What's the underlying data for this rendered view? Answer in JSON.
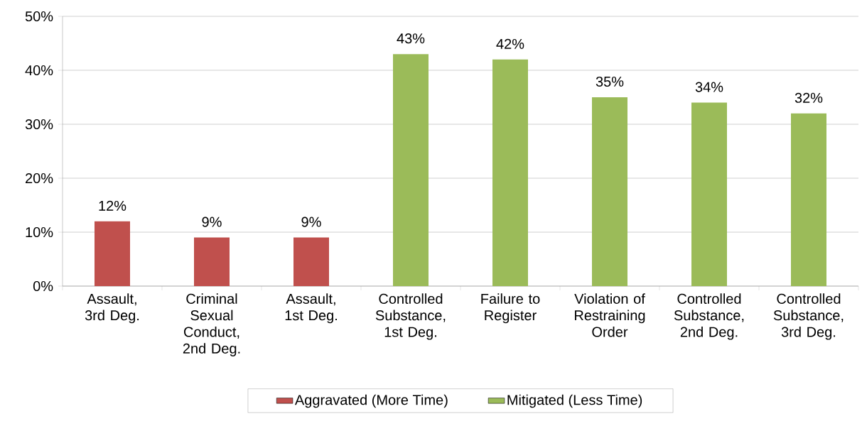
{
  "chart_data": {
    "type": "bar",
    "categories": [
      "Assault, 3rd Deg.",
      "Criminal Sexual Conduct, 2nd Deg.",
      "Assault, 1st Deg.",
      "Controlled Substance, 1st Deg.",
      "Failure to Register",
      "Violation of Restraining Order",
      "Controlled Substance, 2nd Deg.",
      "Controlled Substance, 3rd Deg."
    ],
    "series": [
      {
        "name": "Aggravated (More Time)",
        "color": "#c0504d",
        "values": [
          12,
          9,
          9,
          null,
          null,
          null,
          null,
          null
        ],
        "value_labels": [
          "12%",
          "9%",
          "9%",
          null,
          null,
          null,
          null,
          null
        ]
      },
      {
        "name": "Mitigated (Less Time)",
        "color": "#9bbb59",
        "values": [
          null,
          null,
          null,
          43,
          42,
          35,
          34,
          32
        ],
        "value_labels": [
          null,
          null,
          null,
          "43%",
          "42%",
          "35%",
          "34%",
          "32%"
        ]
      }
    ],
    "ylim": [
      0,
      50
    ],
    "yticks": [
      {
        "value": 0,
        "label": "0%"
      },
      {
        "value": 10,
        "label": "10%"
      },
      {
        "value": 20,
        "label": "20%"
      },
      {
        "value": 30,
        "label": "30%"
      },
      {
        "value": 40,
        "label": "40%"
      },
      {
        "value": 50,
        "label": "50%"
      }
    ],
    "grid": "y",
    "legend": "bottom"
  }
}
